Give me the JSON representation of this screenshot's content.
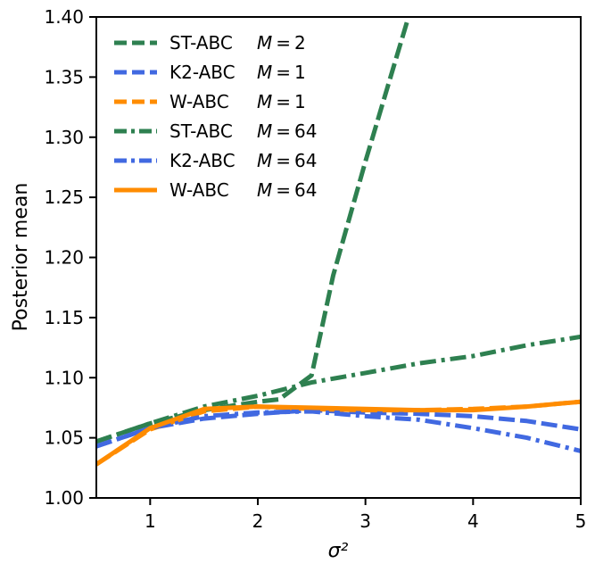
{
  "chart_data": {
    "type": "line",
    "xlabel": "σ²",
    "ylabel": "Posterior mean",
    "xlim": [
      0.5,
      5
    ],
    "ylim": [
      1.0,
      1.4
    ],
    "xticks": [
      1,
      2,
      3,
      4,
      5
    ],
    "xtick_labels": [
      "1",
      "2",
      "3",
      "4",
      "5"
    ],
    "yticks": [
      1.0,
      1.05,
      1.1,
      1.15,
      1.2,
      1.25,
      1.3,
      1.35,
      1.4
    ],
    "ytick_labels": [
      "1.00",
      "1.05",
      "1.10",
      "1.15",
      "1.20",
      "1.25",
      "1.30",
      "1.35",
      "1.40"
    ],
    "grid": false,
    "legend_position": "top-left",
    "series": [
      {
        "name": "ST-ABC  M = 2",
        "label_main": "ST-ABC",
        "label_m": "M = 2",
        "color": "#2e8050",
        "style": "dashed",
        "x": [
          0.5,
          1.0,
          1.5,
          2.0,
          2.2,
          2.5,
          2.7,
          3.0,
          3.2,
          3.4
        ],
        "y": [
          1.047,
          1.062,
          1.073,
          1.08,
          1.082,
          1.102,
          1.185,
          1.28,
          1.34,
          1.4
        ]
      },
      {
        "name": "K2-ABC  M = 1",
        "label_main": "K2-ABC",
        "label_m": "M = 1",
        "color": "#4169e1",
        "style": "dashed",
        "x": [
          0.5,
          1.0,
          1.5,
          2.0,
          2.5,
          3.0,
          3.5,
          4.0,
          4.5,
          5.0
        ],
        "y": [
          1.043,
          1.058,
          1.066,
          1.07,
          1.073,
          1.071,
          1.07,
          1.068,
          1.064,
          1.057
        ]
      },
      {
        "name": "W-ABC   M = 1",
        "label_main": "W-ABC",
        "label_m": "M = 1",
        "color": "#ff8c00",
        "style": "dashed",
        "x": [
          0.5,
          1.0,
          1.5,
          2.0,
          2.5,
          3.0,
          3.5,
          4.0,
          4.5,
          5.0
        ],
        "y": [
          1.028,
          1.057,
          1.072,
          1.076,
          1.074,
          1.073,
          1.073,
          1.074,
          1.076,
          1.08
        ]
      },
      {
        "name": "ST-ABC  M = 64",
        "label_main": "ST-ABC",
        "label_m": "M = 64",
        "color": "#2e8050",
        "style": "dashdot",
        "x": [
          0.5,
          1.0,
          1.5,
          2.0,
          2.5,
          3.0,
          3.5,
          4.0,
          4.5,
          5.0
        ],
        "y": [
          1.047,
          1.062,
          1.076,
          1.085,
          1.096,
          1.104,
          1.112,
          1.118,
          1.127,
          1.134
        ]
      },
      {
        "name": "K2-ABC  M = 64",
        "label_main": "K2-ABC",
        "label_m": "M = 64",
        "color": "#4169e1",
        "style": "dashdot",
        "x": [
          0.5,
          1.0,
          1.5,
          2.0,
          2.5,
          3.0,
          3.5,
          4.0,
          4.5,
          5.0
        ],
        "y": [
          1.043,
          1.058,
          1.068,
          1.071,
          1.072,
          1.068,
          1.065,
          1.058,
          1.05,
          1.039
        ]
      },
      {
        "name": "W-ABC   M = 64",
        "label_main": "W-ABC",
        "label_m": "M = 64",
        "color": "#ff8c00",
        "style": "solid",
        "x": [
          0.5,
          1.0,
          1.5,
          2.0,
          2.5,
          3.0,
          3.5,
          4.0,
          4.5,
          5.0
        ],
        "y": [
          1.028,
          1.058,
          1.074,
          1.076,
          1.075,
          1.074,
          1.073,
          1.073,
          1.076,
          1.08
        ]
      }
    ]
  }
}
